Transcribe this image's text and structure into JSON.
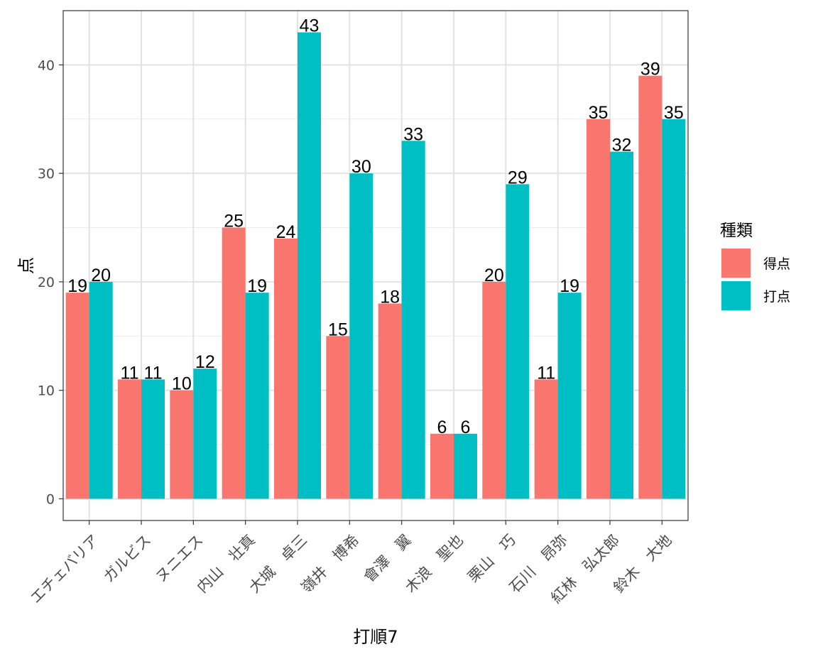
{
  "chart_data": {
    "type": "bar",
    "title": "",
    "xlabel": "打順7",
    "ylabel": "点",
    "ylim": [
      -2,
      45
    ],
    "yticks": [
      0,
      10,
      20,
      30,
      40
    ],
    "grid": true,
    "legend": {
      "title": "種類",
      "position": "right"
    },
    "categories": [
      "エチェバリア",
      "ガルビス",
      "ヌニエス",
      "内山　壮真",
      "大城　卓三",
      "嶺井　博希",
      "會澤　翼",
      "木浪　聖也",
      "栗山　巧",
      "石川　昂弥",
      "紅林　弘太郎",
      "鈴木　大地"
    ],
    "series": [
      {
        "name": "得点",
        "color": "#F8766D",
        "values": [
          19,
          11,
          10,
          25,
          24,
          15,
          18,
          6,
          20,
          11,
          35,
          39
        ]
      },
      {
        "name": "打点",
        "color": "#00BFC4",
        "values": [
          20,
          11,
          12,
          19,
          43,
          30,
          33,
          6,
          29,
          19,
          32,
          35
        ]
      }
    ]
  }
}
